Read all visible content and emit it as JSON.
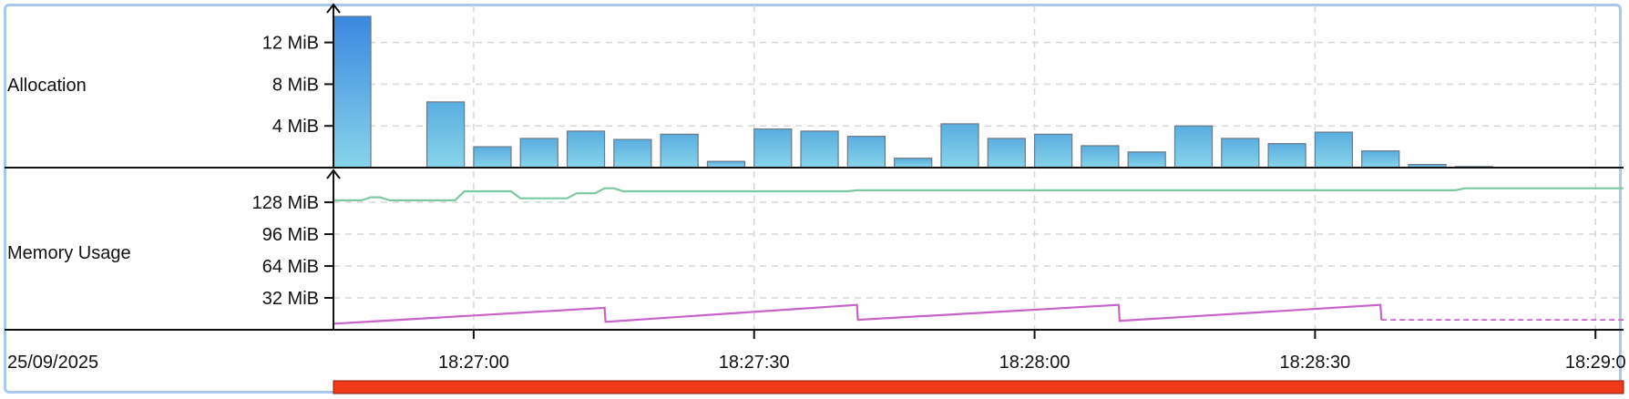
{
  "panels": {
    "allocation_label": "Allocation",
    "memory_label": "Memory Usage",
    "date_label": "25/09/2025"
  },
  "colors": {
    "bar_top": "#5aaee0",
    "bar_bottom": "#88d4ea",
    "first_bar_top": "#3a88e0",
    "bar_stroke": "#6a7a86",
    "committed_line": "#7cc8a0",
    "used_line": "#c863c8",
    "progress_bar": "#f03a1a",
    "grid": "#d7d7d7",
    "frame": "#a8c8f0"
  },
  "chart_data": [
    {
      "type": "bar",
      "name": "allocation",
      "y_tick_labels": [
        "4 MiB",
        "8 MiB",
        "12 MiB"
      ],
      "y_ticks": [
        4,
        8,
        12
      ],
      "ylim": [
        0,
        14.5
      ],
      "bar_width_s": 4,
      "x_s": [
        0,
        10,
        15,
        20,
        25,
        30,
        35,
        40,
        45,
        50,
        55,
        60,
        65,
        70,
        75,
        80,
        85,
        90,
        95,
        100,
        105,
        110,
        115,
        120,
        125
      ],
      "values": [
        14.5,
        6.3,
        2.0,
        2.8,
        3.5,
        2.7,
        3.2,
        0.6,
        3.7,
        3.5,
        3.0,
        0.9,
        4.2,
        2.8,
        3.2,
        2.1,
        1.5,
        4.0,
        2.8,
        2.3,
        3.4,
        1.6,
        0.3,
        0.1,
        0
      ]
    },
    {
      "type": "line",
      "name": "memory_usage",
      "y_tick_labels": [
        "32 MiB",
        "64 MiB",
        "96 MiB",
        "128 MiB"
      ],
      "y_ticks": [
        32,
        64,
        96,
        128
      ],
      "ylim": [
        0,
        150
      ],
      "series": [
        {
          "role": "committed",
          "points": [
            [
              0,
              130
            ],
            [
              3,
              130
            ],
            [
              4,
              133
            ],
            [
              5,
              133
            ],
            [
              6,
              130
            ],
            [
              13,
              130
            ],
            [
              14,
              139
            ],
            [
              19,
              139
            ],
            [
              20,
              132
            ],
            [
              25,
              132
            ],
            [
              26,
              137
            ],
            [
              28,
              137
            ],
            [
              29,
              142
            ],
            [
              30,
              142
            ],
            [
              31,
              139
            ],
            [
              55,
              139
            ],
            [
              56,
              140
            ],
            [
              120,
              140
            ],
            [
              121,
              142
            ],
            [
              138,
              142
            ]
          ]
        },
        {
          "role": "used",
          "points": [
            [
              0,
              6
            ],
            [
              29,
              22
            ],
            [
              29.1,
              8
            ],
            [
              56,
              25
            ],
            [
              56.1,
              10
            ],
            [
              84,
              25
            ],
            [
              84.1,
              9
            ],
            [
              112,
              25
            ],
            [
              112.1,
              10
            ],
            [
              138,
              10
            ]
          ],
          "dashed_from_s": 112.1
        }
      ]
    }
  ],
  "time_axis": {
    "tick_labels": [
      "18:27:00",
      "18:27:30",
      "18:28:00",
      "18:28:30",
      "18:29:0"
    ],
    "tick_s": [
      15,
      45,
      75,
      105,
      135
    ],
    "range_s": [
      0,
      138
    ]
  }
}
